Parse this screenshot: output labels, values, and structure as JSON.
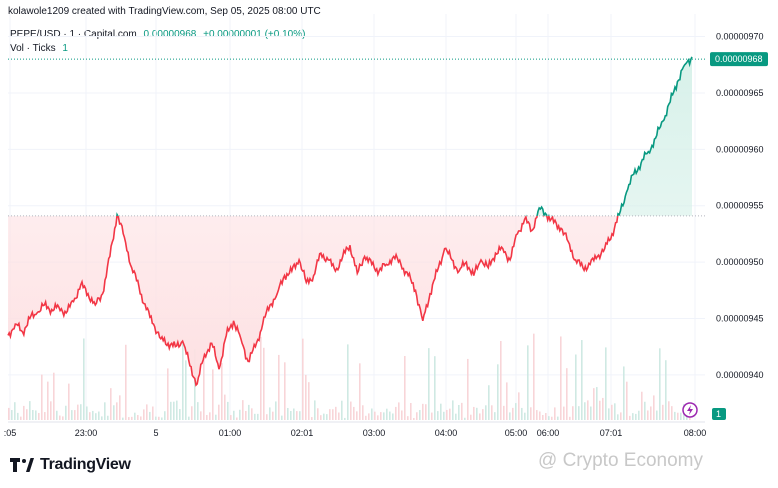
{
  "header": {
    "credit": "kolawole1209 created with TradingView.com, Sep 05, 2025 08:00 UTC"
  },
  "legend": {
    "symbol": "PEPE/USD · 1 · Capital.com",
    "price": "0.00000968",
    "change": "+0.00000001 (+0.10%)",
    "vol_label": "Vol · Ticks",
    "vol_value": "1"
  },
  "footer": {
    "brand": "TradingView",
    "watermark": "@ Crypto Economy"
  },
  "colors": {
    "up": "#089981",
    "down": "#f23645",
    "up_fill": "#d8f1ea",
    "down_fill": "#fde0e2",
    "grid": "#f0f3fa"
  },
  "chart_data": {
    "type": "line",
    "series_name": "PEPE/USD",
    "x_tick_labels": [
      ":05",
      "23:00",
      "5",
      "01:00",
      "02:01",
      "03:00",
      "04:00",
      "05:00",
      "06:00",
      "07:01",
      "08:00"
    ],
    "y_tick_labels": [
      "0.00000970",
      "0.00000965",
      "0.00000960",
      "0.00000955",
      "0.00000950",
      "0.00000945",
      "0.00000940"
    ],
    "y_ticks": [
      9.7e-06,
      9.65e-06,
      9.6e-06,
      9.55e-06,
      9.5e-06,
      9.45e-06,
      9.4e-06
    ],
    "ylim": [
      9.36e-06,
      9.72e-06
    ],
    "baseline": 9.541e-06,
    "last_price": 9.68e-06,
    "last_price_label": "0.00000968",
    "volume_badge": "1",
    "values": [
      9.435e-06,
      9.445e-06,
      9.438e-06,
      9.45e-06,
      9.455e-06,
      9.462e-06,
      9.458e-06,
      9.46e-06,
      9.455e-06,
      9.465e-06,
      9.48e-06,
      9.472e-06,
      9.462e-06,
      9.472e-06,
      9.505e-06,
      9.542e-06,
      9.522e-06,
      9.495e-06,
      9.478e-06,
      9.458e-06,
      9.445e-06,
      9.432e-06,
      9.428e-06,
      9.425e-06,
      9.43e-06,
      9.408e-06,
      9.392e-06,
      9.418e-06,
      9.428e-06,
      9.405e-06,
      9.435e-06,
      9.448e-06,
      9.432e-06,
      9.412e-06,
      9.425e-06,
      9.445e-06,
      9.462e-06,
      9.472e-06,
      9.488e-06,
      9.492e-06,
      9.502e-06,
      9.482e-06,
      9.488e-06,
      9.508e-06,
      9.502e-06,
      9.492e-06,
      9.505e-06,
      9.515e-06,
      9.49e-06,
      9.505e-06,
      9.498e-06,
      9.492e-06,
      9.498e-06,
      9.505e-06,
      9.498e-06,
      9.488e-06,
      9.475e-06,
      9.448e-06,
      9.472e-06,
      9.492e-06,
      9.512e-06,
      9.502e-06,
      9.492e-06,
      9.5e-06,
      9.488e-06,
      9.502e-06,
      9.495e-06,
      9.508e-06,
      9.512e-06,
      9.502e-06,
      9.525e-06,
      9.538e-06,
      9.528e-06,
      9.548e-06,
      9.542e-06,
      9.535e-06,
      9.53e-06,
      9.518e-06,
      9.502e-06,
      9.495e-06,
      9.498e-06,
      9.505e-06,
      9.512e-06,
      9.525e-06,
      9.542e-06,
      9.562e-06,
      9.578e-06,
      9.588e-06,
      9.598e-06,
      9.61e-06,
      9.625e-06,
      9.642e-06,
      9.66e-06,
      9.675e-06,
      9.682e-06
    ]
  }
}
